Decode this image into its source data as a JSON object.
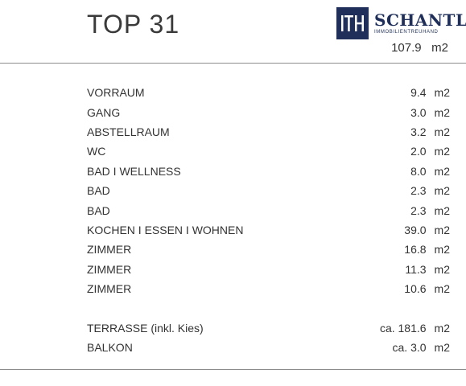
{
  "title": "TOP 31",
  "logo": {
    "mark": "ITH",
    "name": "SCHANTL",
    "subtitle": "IMMOBILIENTREUHAND",
    "color": "#1f2f5a"
  },
  "total": {
    "value": "107.9",
    "unit": "m2"
  },
  "rooms": [
    {
      "name": "VORRAUM",
      "value": "9.4",
      "unit": "m2"
    },
    {
      "name": "GANG",
      "value": "3.0",
      "unit": "m2"
    },
    {
      "name": "ABSTELLRAUM",
      "value": "3.2",
      "unit": "m2"
    },
    {
      "name": "WC",
      "value": "2.0",
      "unit": "m2"
    },
    {
      "name": "BAD I WELLNESS",
      "value": "8.0",
      "unit": "m2"
    },
    {
      "name": "BAD",
      "value": "2.3",
      "unit": "m2"
    },
    {
      "name": "BAD",
      "value": "2.3",
      "unit": "m2"
    },
    {
      "name": "KOCHEN I ESSEN I WOHNEN",
      "value": "39.0",
      "unit": "m2"
    },
    {
      "name": "ZIMMER",
      "value": "16.8",
      "unit": "m2"
    },
    {
      "name": "ZIMMER",
      "value": "11.3",
      "unit": "m2"
    },
    {
      "name": "ZIMMER",
      "value": "10.6",
      "unit": "m2"
    }
  ],
  "outdoor": [
    {
      "name": "TERRASSE (inkl. Kies)",
      "value": "ca. 181.6",
      "unit": "m2"
    },
    {
      "name": "BALKON",
      "value": "ca. 3.0",
      "unit": "m2"
    }
  ]
}
